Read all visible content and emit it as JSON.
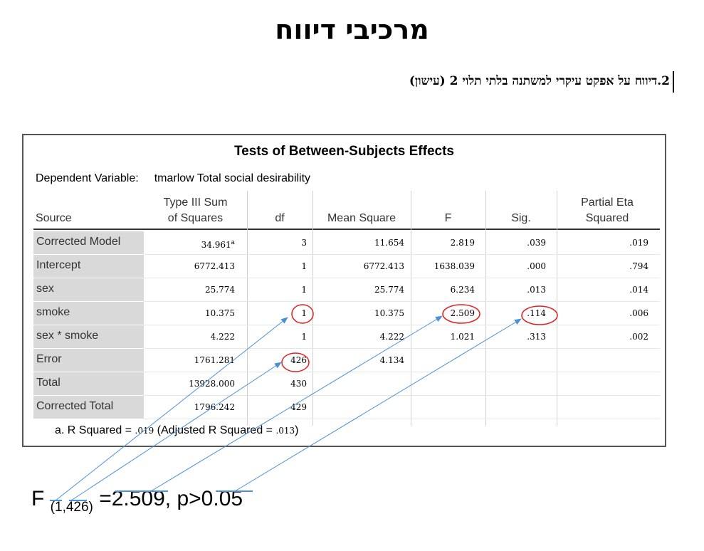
{
  "slide": {
    "title": "מרכיבי דיווח",
    "subtitle": "2.דיווח על אפקט עיקרי למשתנה בלתי תלוי 2 (עישון)"
  },
  "table": {
    "title": "Tests of Between-Subjects Effects",
    "dependent_label": "Dependent Variable:",
    "dependent_value": "tmarlow Total social desirability",
    "columns": {
      "source": "Source",
      "ss1": "Type III Sum",
      "ss2": "of Squares",
      "df": "df",
      "ms": "Mean Square",
      "f": "F",
      "sig": "Sig.",
      "eta1": "Partial Eta",
      "eta2": "Squared"
    },
    "rows": [
      {
        "source": "Corrected Model",
        "ss": "34.961",
        "sup": "a",
        "df": "3",
        "ms": "11.654",
        "f": "2.819",
        "sig": ".039",
        "eta": ".019"
      },
      {
        "source": "Intercept",
        "ss": "6772.413",
        "sup": "",
        "df": "1",
        "ms": "6772.413",
        "f": "1638.039",
        "sig": ".000",
        "eta": ".794"
      },
      {
        "source": "sex",
        "ss": "25.774",
        "sup": "",
        "df": "1",
        "ms": "25.774",
        "f": "6.234",
        "sig": ".013",
        "eta": ".014"
      },
      {
        "source": "smoke",
        "ss": "10.375",
        "sup": "",
        "df": "1",
        "ms": "10.375",
        "f": "2.509",
        "sig": ".114",
        "eta": ".006"
      },
      {
        "source": "sex * smoke",
        "ss": "4.222",
        "sup": "",
        "df": "1",
        "ms": "4.222",
        "f": "1.021",
        "sig": ".313",
        "eta": ".002"
      },
      {
        "source": "Error",
        "ss": "1761.281",
        "sup": "",
        "df": "426",
        "ms": "4.134",
        "f": "",
        "sig": "",
        "eta": ""
      },
      {
        "source": "Total",
        "ss": "13928.000",
        "sup": "",
        "df": "430",
        "ms": "",
        "f": "",
        "sig": "",
        "eta": ""
      },
      {
        "source": "Corrected Total",
        "ss": "1796.242",
        "sup": "",
        "df": "429",
        "ms": "",
        "f": "",
        "sig": "",
        "eta": ""
      }
    ],
    "footnote_prefix": "a. R Squared = ",
    "footnote_r2": ".019",
    "footnote_mid": " (Adjusted R Squared = ",
    "footnote_adj": ".013",
    "footnote_end": ")"
  },
  "formula": {
    "f": "F ",
    "df": "(1,426)",
    "rest": " =2.509, p>0.05"
  },
  "colors": {
    "highlight": "#e02020",
    "arrow": "#4a90d9",
    "label_bg": "#d9d9d9"
  }
}
